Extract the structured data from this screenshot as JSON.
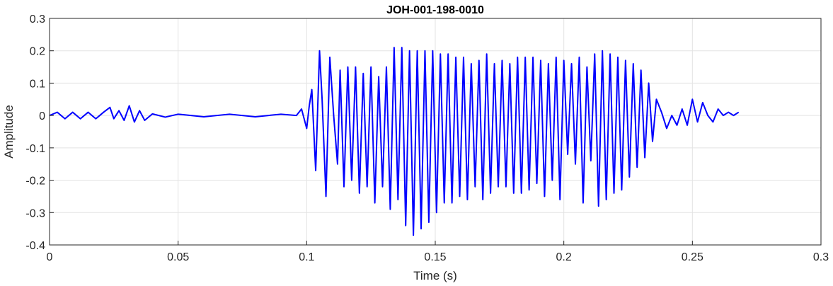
{
  "chart_data": {
    "type": "line",
    "title": "JOH-001-198-0010",
    "xlabel": "Time (s)",
    "ylabel": "Amplitude",
    "xlim": [
      0,
      0.3
    ],
    "ylim": [
      -0.4,
      0.3
    ],
    "x_ticks": [
      0,
      0.05,
      0.1,
      0.15,
      0.2,
      0.25,
      0.3
    ],
    "x_tick_labels": [
      "0",
      "0.05",
      "0.1",
      "0.15",
      "0.2",
      "0.25",
      "0.3"
    ],
    "y_ticks": [
      -0.4,
      -0.3,
      -0.2,
      -0.1,
      0,
      0.1,
      0.2,
      0.3
    ],
    "y_tick_labels": [
      "-0.4",
      "-0.3",
      "-0.2",
      "-0.1",
      "0",
      "0.1",
      "0.2",
      "0.3"
    ],
    "grid": true,
    "line_color": "#0000ff",
    "series": [
      {
        "x": [
          0.0,
          0.003,
          0.006,
          0.009,
          0.012,
          0.015,
          0.018,
          0.021,
          0.0235,
          0.025,
          0.027,
          0.029,
          0.031,
          0.033,
          0.035,
          0.037,
          0.04,
          0.045,
          0.05,
          0.06,
          0.07,
          0.08,
          0.09,
          0.096,
          0.098,
          0.1,
          0.101,
          0.102,
          0.1035,
          0.105,
          0.106,
          0.1075,
          0.109,
          0.1105,
          0.112,
          0.113,
          0.1145,
          0.116,
          0.1175,
          0.119,
          0.1205,
          0.122,
          0.1235,
          0.125,
          0.1265,
          0.128,
          0.1295,
          0.131,
          0.1325,
          0.134,
          0.1355,
          0.137,
          0.1385,
          0.14,
          0.1415,
          0.143,
          0.1445,
          0.146,
          0.1475,
          0.149,
          0.1505,
          0.152,
          0.1535,
          0.155,
          0.1565,
          0.158,
          0.1595,
          0.161,
          0.1625,
          0.164,
          0.1655,
          0.167,
          0.1685,
          0.17,
          0.1715,
          0.173,
          0.1745,
          0.176,
          0.1775,
          0.179,
          0.1805,
          0.182,
          0.1835,
          0.185,
          0.1865,
          0.188,
          0.1895,
          0.191,
          0.1925,
          0.194,
          0.1955,
          0.197,
          0.1985,
          0.2,
          0.2015,
          0.203,
          0.2045,
          0.206,
          0.2075,
          0.209,
          0.2105,
          0.212,
          0.2135,
          0.215,
          0.2165,
          0.218,
          0.2195,
          0.221,
          0.2225,
          0.224,
          0.2255,
          0.227,
          0.2285,
          0.23,
          0.2315,
          0.233,
          0.2345,
          0.236,
          0.238,
          0.24,
          0.242,
          0.244,
          0.246,
          0.248,
          0.25,
          0.252,
          0.254,
          0.256,
          0.258,
          0.26,
          0.262,
          0.264,
          0.266,
          0.268
        ],
        "y": [
          0.0,
          0.01,
          -0.01,
          0.01,
          -0.01,
          0.01,
          -0.01,
          0.01,
          0.025,
          -0.01,
          0.015,
          -0.015,
          0.03,
          -0.02,
          0.015,
          -0.015,
          0.005,
          -0.005,
          0.004,
          -0.004,
          0.004,
          -0.004,
          0.004,
          0.0,
          0.02,
          -0.04,
          0.03,
          0.08,
          -0.17,
          0.2,
          0.05,
          -0.25,
          0.18,
          0.0,
          -0.15,
          0.14,
          -0.22,
          0.15,
          -0.2,
          0.15,
          -0.24,
          0.13,
          -0.22,
          0.15,
          -0.27,
          0.12,
          -0.22,
          0.15,
          -0.29,
          0.21,
          -0.26,
          0.21,
          -0.34,
          0.2,
          -0.37,
          0.2,
          -0.35,
          0.2,
          -0.33,
          0.2,
          -0.3,
          0.19,
          -0.27,
          0.19,
          -0.27,
          0.18,
          -0.25,
          0.18,
          -0.26,
          0.16,
          -0.22,
          0.17,
          -0.26,
          0.19,
          -0.24,
          0.16,
          -0.22,
          0.17,
          -0.22,
          0.16,
          -0.24,
          0.18,
          -0.24,
          0.18,
          -0.23,
          0.18,
          -0.21,
          0.17,
          -0.25,
          0.16,
          -0.2,
          0.18,
          -0.26,
          0.17,
          -0.12,
          0.16,
          -0.15,
          0.18,
          -0.27,
          0.15,
          -0.14,
          0.19,
          -0.28,
          0.2,
          -0.26,
          0.19,
          -0.24,
          0.18,
          -0.23,
          0.17,
          -0.19,
          0.16,
          -0.16,
          0.14,
          -0.13,
          0.1,
          -0.08,
          0.05,
          0.01,
          -0.04,
          0.0,
          -0.03,
          0.02,
          -0.03,
          0.05,
          -0.02,
          0.04,
          0.0,
          -0.02,
          0.02,
          0.0,
          0.01,
          0.0,
          0.01
        ]
      }
    ]
  }
}
